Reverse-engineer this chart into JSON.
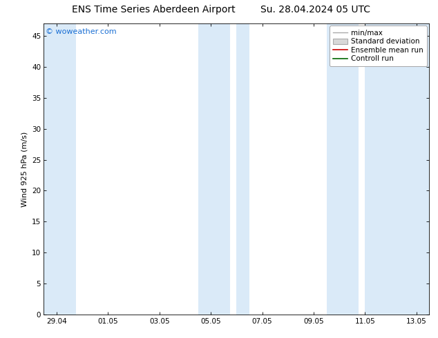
{
  "title_left": "ENS Time Series Aberdeen Airport",
  "title_right": "Su. 28.04.2024 05 UTC",
  "ylabel": "Wind 925 hPa (m/s)",
  "ylim": [
    0,
    47
  ],
  "yticks": [
    0,
    5,
    10,
    15,
    20,
    25,
    30,
    35,
    40,
    45
  ],
  "bg_color": "#ffffff",
  "plot_bg_color": "#ffffff",
  "band_color": "#daeaf8",
  "watermark": "© woweather.com",
  "watermark_color": "#1a6fd4",
  "xtick_labels": [
    "29.04",
    "01.05",
    "03.05",
    "05.05",
    "07.05",
    "09.05",
    "11.05",
    "13.05"
  ],
  "xtick_positions": [
    0,
    2,
    4,
    6,
    8,
    10,
    12,
    14
  ],
  "xlim": [
    -0.5,
    14.5
  ],
  "band_positions": [
    {
      "start": -0.5,
      "end": 0.75
    },
    {
      "start": 5.5,
      "end": 6.75
    },
    {
      "start": 7.0,
      "end": 7.5
    },
    {
      "start": 10.5,
      "end": 11.75
    },
    {
      "start": 12.0,
      "end": 14.5
    }
  ],
  "legend_items": [
    {
      "label": "min/max",
      "color": "#aaaaaa",
      "lw": 1.0,
      "style": "-",
      "type": "line"
    },
    {
      "label": "Standard deviation",
      "color": "#d8d8d8",
      "edge_color": "#aaaaaa",
      "type": "patch"
    },
    {
      "label": "Ensemble mean run",
      "color": "#cc0000",
      "lw": 1.2,
      "style": "-",
      "type": "line"
    },
    {
      "label": "Controll run",
      "color": "#006600",
      "lw": 1.2,
      "style": "-",
      "type": "line"
    }
  ],
  "font_size_title": 10,
  "font_size_axis": 8,
  "font_size_tick": 7.5,
  "font_size_legend": 7.5,
  "font_size_watermark": 8
}
